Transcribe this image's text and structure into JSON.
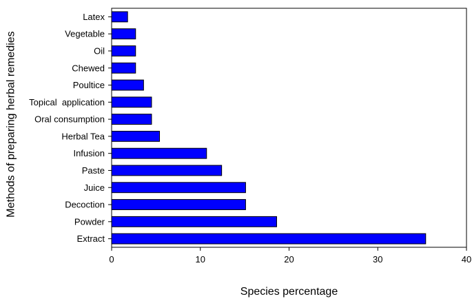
{
  "chart_data": {
    "type": "bar",
    "orientation": "horizontal",
    "title": "",
    "xlabel": "Species percentage",
    "ylabel": "Methods of preparing herbal remedies",
    "xlim": [
      0,
      40
    ],
    "xticks": [
      0,
      10,
      20,
      30,
      40
    ],
    "grid": false,
    "bar_color": "#0000ff",
    "bar_edge_color": "#000000",
    "categories": [
      "Latex",
      "Vegetable",
      "Oil",
      "Chewed",
      "Poultice",
      "Topical  application",
      "Oral consumption",
      "Herbal Tea",
      "Infusion",
      "Paste",
      "Juice",
      "Decoction",
      "Powder",
      "Extract"
    ],
    "values": [
      1.8,
      2.7,
      2.7,
      2.7,
      3.6,
      4.5,
      4.5,
      5.4,
      10.7,
      12.4,
      15.1,
      15.1,
      18.6,
      35.4
    ]
  }
}
